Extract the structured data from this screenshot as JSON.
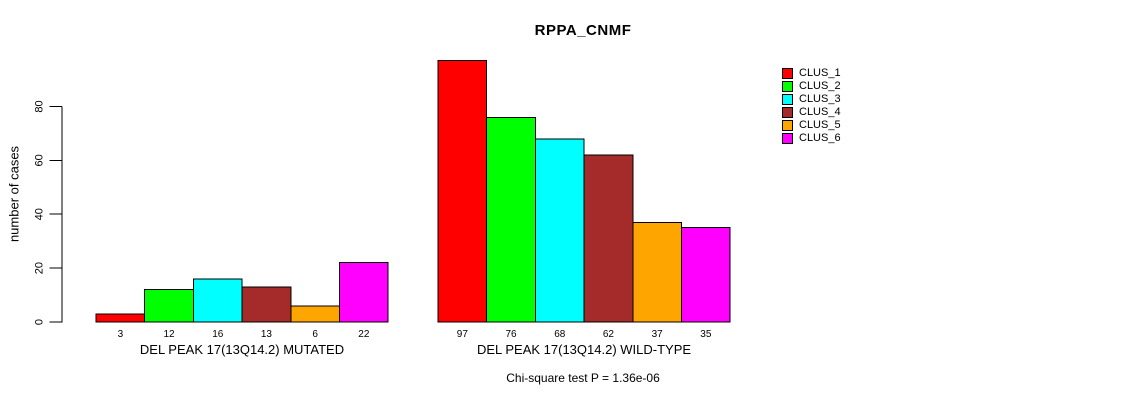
{
  "chart_data": {
    "type": "bar",
    "title": "RPPA_CNMF",
    "ylabel": "number of cases",
    "xlabel": "",
    "yticks": [
      0,
      20,
      40,
      60,
      80
    ],
    "ylim": [
      0,
      97
    ],
    "grid": false,
    "legend_position": "right",
    "categories": [
      "DEL PEAK 17(13Q14.2) MUTATED",
      "DEL PEAK 17(13Q14.2) WILD-TYPE"
    ],
    "series": [
      {
        "name": "CLUS_1",
        "color": "#ff0000",
        "values": [
          3,
          97
        ]
      },
      {
        "name": "CLUS_2",
        "color": "#00ff00",
        "values": [
          12,
          76
        ]
      },
      {
        "name": "CLUS_3",
        "color": "#00ffff",
        "values": [
          16,
          68
        ]
      },
      {
        "name": "CLUS_4",
        "color": "#a52a2a",
        "values": [
          13,
          62
        ]
      },
      {
        "name": "CLUS_5",
        "color": "#ffa500",
        "values": [
          6,
          37
        ]
      },
      {
        "name": "CLUS_6",
        "color": "#ff00ff",
        "values": [
          22,
          35
        ]
      }
    ],
    "bar_value_labels_shown": true,
    "annotation": "Chi-square test P = 1.36e-06",
    "axis_color": "#000000",
    "background": "#ffffff"
  }
}
